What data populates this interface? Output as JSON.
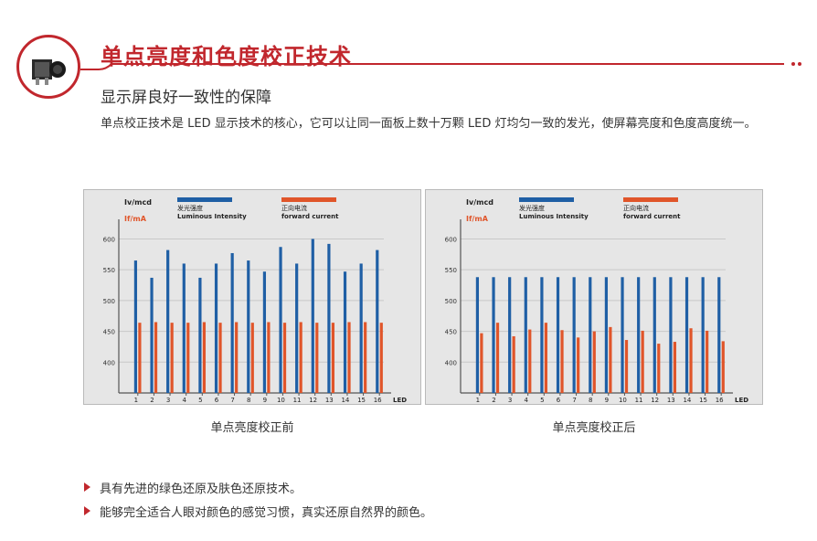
{
  "header": {
    "title": "单点亮度和色度校正技术",
    "subtitle": "显示屏良好一致性的保障",
    "description": "单点校正技术是 LED 显示技术的核心，它可以让同一面板上数十万颗 LED 灯均匀一致的发光，使屏幕亮度和色度高度统一。",
    "logo_icon": "camera-module-icon"
  },
  "colors": {
    "accent": "#c1272d",
    "blue": "#1f5fa5",
    "orange": "#e0552a"
  },
  "chart_data": [
    {
      "type": "bar",
      "caption": "单点亮度校正前",
      "y_label_blue": "Iv/mcd",
      "y_label_red": "If/mA",
      "legend": [
        {
          "cn": "发光强度",
          "en": "Luminous Intensity",
          "color": "#1f5fa5"
        },
        {
          "cn": "正向电流",
          "en": "forward current",
          "color": "#e0552a"
        }
      ],
      "x_unit": "LED",
      "categories": [
        "1",
        "2",
        "3",
        "4",
        "5",
        "6",
        "7",
        "8",
        "9",
        "10",
        "11",
        "12",
        "13",
        "14",
        "15",
        "16"
      ],
      "yticks": [
        400,
        450,
        500,
        550,
        600
      ],
      "ylim": [
        350,
        620
      ],
      "series": [
        {
          "name": "发光强度 Luminous Intensity",
          "values": [
            565,
            537,
            582,
            560,
            537,
            560,
            577,
            565,
            547,
            587,
            560,
            600,
            592,
            547,
            560,
            582
          ]
        },
        {
          "name": "正向电流 forward current",
          "values": [
            464,
            465,
            464,
            464,
            465,
            464,
            465,
            464,
            465,
            464,
            465,
            464,
            464,
            465,
            465,
            464
          ]
        }
      ]
    },
    {
      "type": "bar",
      "caption": "单点亮度校正后",
      "y_label_blue": "Iv/mcd",
      "y_label_red": "If/mA",
      "legend": [
        {
          "cn": "发光强度",
          "en": "Luminous Intensity",
          "color": "#1f5fa5"
        },
        {
          "cn": "正向电流",
          "en": "forward current",
          "color": "#e0552a"
        }
      ],
      "x_unit": "LED",
      "categories": [
        "1",
        "2",
        "3",
        "4",
        "5",
        "6",
        "7",
        "8",
        "9",
        "10",
        "11",
        "12",
        "13",
        "14",
        "15",
        "16"
      ],
      "yticks": [
        400,
        450,
        500,
        550,
        600
      ],
      "ylim": [
        350,
        620
      ],
      "series": [
        {
          "name": "发光强度 Luminous Intensity",
          "values": [
            538,
            538,
            538,
            538,
            538,
            538,
            538,
            538,
            538,
            538,
            538,
            538,
            538,
            538,
            538,
            538
          ]
        },
        {
          "name": "正向电流 forward current",
          "values": [
            447,
            464,
            442,
            453,
            464,
            452,
            440,
            450,
            457,
            436,
            451,
            430,
            433,
            455,
            451,
            434
          ]
        }
      ]
    }
  ],
  "bullets": [
    "具有先进的绿色还原及肤色还原技术。",
    "能够完全适合人眼对颜色的感觉习惯，真实还原自然界的颜色。"
  ]
}
